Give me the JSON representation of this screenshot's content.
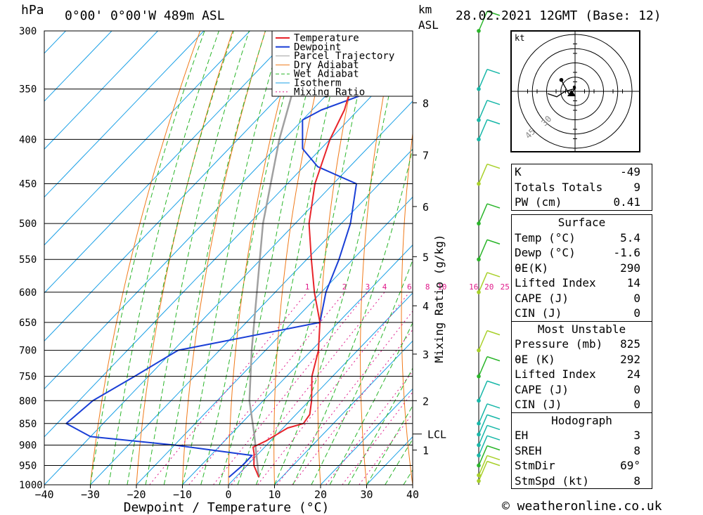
{
  "header": {
    "hpa_unit": "hPa",
    "location": "0°00' 0°00'W 489m ASL",
    "km_unit": "km",
    "asl": "ASL",
    "datetime": "28.02.2021 12GMT (Base: 12)"
  },
  "footer": "© weatheronline.co.uk",
  "colors": {
    "temperature": "#e8242a",
    "dewpoint": "#1a3fd6",
    "parcel": "#a0a0a0",
    "dry_adiabat": "#f07a1a",
    "wet_adiabat": "#2ab52a",
    "isotherm": "#1aa0e6",
    "mixing_ratio": "#e01a8a"
  },
  "hodograph": {
    "unit": "kt",
    "ring_labels": [
      "30",
      "45"
    ],
    "trace": [
      [
        -6,
        0.5
      ],
      [
        -4,
        1.2
      ],
      [
        -2.5,
        0.2
      ],
      [
        -1.5,
        -0.2
      ],
      [
        0,
        -0.6
      ],
      [
        -1.2,
        0.8
      ],
      [
        -2.5,
        -1.5
      ],
      [
        -3,
        -2.5
      ]
    ]
  },
  "indices": {
    "top": [
      {
        "label": "K",
        "value": "-49"
      },
      {
        "label": "Totals Totals",
        "value": "9"
      },
      {
        "label": "PW (cm)",
        "value": "0.41"
      }
    ],
    "surface": {
      "title": "Surface",
      "rows": [
        {
          "label": "Temp (°C)",
          "value": "5.4"
        },
        {
          "label": "Dewp (°C)",
          "value": "-1.6"
        },
        {
          "label": "θE(K)",
          "value": "290"
        },
        {
          "label": "Lifted Index",
          "value": "14"
        },
        {
          "label": "CAPE (J)",
          "value": "0"
        },
        {
          "label": "CIN (J)",
          "value": "0"
        }
      ]
    },
    "most_unstable": {
      "title": "Most Unstable",
      "rows": [
        {
          "label": "Pressure (mb)",
          "value": "825"
        },
        {
          "label": "θE (K)",
          "value": "292"
        },
        {
          "label": "Lifted Index",
          "value": "24"
        },
        {
          "label": "CAPE (J)",
          "value": "0"
        },
        {
          "label": "CIN (J)",
          "value": "0"
        }
      ]
    },
    "hodograph": {
      "title": "Hodograph",
      "rows": [
        {
          "label": "EH",
          "value": "3"
        },
        {
          "label": "SREH",
          "value": "8"
        },
        {
          "label": "StmDir",
          "value": "69°"
        },
        {
          "label": "StmSpd (kt)",
          "value": "8"
        }
      ]
    }
  },
  "chart_data": {
    "type": "line",
    "xlabel": "Dewpoint / Temperature (°C)",
    "ylabel_right": "Mixing Ratio (g/kg)",
    "xlim": [
      -40,
      40
    ],
    "ylim": [
      1000,
      300
    ],
    "y_scale": "log",
    "x_ticks": [
      -40,
      -30,
      -20,
      -10,
      0,
      10,
      20,
      30,
      40
    ],
    "pressure_ticks": [
      300,
      350,
      400,
      450,
      500,
      550,
      600,
      650,
      700,
      750,
      800,
      850,
      900,
      950,
      1000
    ],
    "height_ticks_km": [
      {
        "label": "8",
        "p": 363
      },
      {
        "label": "7",
        "p": 417
      },
      {
        "label": "6",
        "p": 478
      },
      {
        "label": "5",
        "p": 546
      },
      {
        "label": "4",
        "p": 622
      },
      {
        "label": "3",
        "p": 707
      },
      {
        "label": "2",
        "p": 800
      },
      {
        "label": "1",
        "p": 912
      }
    ],
    "lcl": {
      "label": "LCL",
      "p": 874
    },
    "mixing_ratio_labels": [
      "1",
      "2",
      "3",
      "4",
      "6",
      "8",
      "10",
      "16",
      "20",
      "25"
    ],
    "mixing_ratio_label_p": 600,
    "legend": [
      "Temperature",
      "Dewpoint",
      "Parcel Trajectory",
      "Dry Adiabat",
      "Wet Adiabat",
      "Isotherm",
      "Mixing Ratio"
    ],
    "series": [
      {
        "name": "Temperature",
        "points": [
          [
            980,
            5.0
          ],
          [
            950,
            1.5
          ],
          [
            920,
            -1.0
          ],
          [
            905,
            -2.5
          ],
          [
            890,
            -1.0
          ],
          [
            860,
            1.0
          ],
          [
            850,
            3.5
          ],
          [
            830,
            3.0
          ],
          [
            800,
            0.5
          ],
          [
            750,
            -4.5
          ],
          [
            700,
            -8.5
          ],
          [
            650,
            -14.0
          ],
          [
            600,
            -21.5
          ],
          [
            550,
            -29.0
          ],
          [
            500,
            -37.0
          ],
          [
            450,
            -44.0
          ],
          [
            400,
            -50.0
          ],
          [
            370,
            -53.0
          ],
          [
            350,
            -56.0
          ],
          [
            300,
            -63.0
          ]
        ]
      },
      {
        "name": "Dewpoint",
        "points": [
          [
            980,
            -1.5
          ],
          [
            950,
            -1.0
          ],
          [
            925,
            -1.0
          ],
          [
            900,
            -20.0
          ],
          [
            880,
            -40.0
          ],
          [
            850,
            -48.0
          ],
          [
            800,
            -47.0
          ],
          [
            750,
            -43.0
          ],
          [
            700,
            -39.0
          ],
          [
            650,
            -14.0
          ],
          [
            600,
            -19.0
          ],
          [
            550,
            -23.0
          ],
          [
            500,
            -28.0
          ],
          [
            450,
            -35.0
          ],
          [
            430,
            -47.0
          ],
          [
            410,
            -54.0
          ],
          [
            380,
            -60.0
          ],
          [
            370,
            -58.0
          ],
          [
            350,
            -50.0
          ],
          [
            340,
            -66.0
          ],
          [
            300,
            -71.0
          ]
        ]
      },
      {
        "name": "Parcel Trajectory",
        "points": [
          [
            980,
            5.0
          ],
          [
            874,
            -5.0
          ],
          [
            800,
            -13.0
          ],
          [
            700,
            -23.0
          ],
          [
            600,
            -34.0
          ],
          [
            500,
            -47.0
          ],
          [
            400,
            -61.0
          ],
          [
            300,
            -77.0
          ]
        ]
      }
    ],
    "wind_barbs": [
      {
        "p": 990,
        "color": "#a8d02a"
      },
      {
        "p": 975,
        "color": "#a8d02a"
      },
      {
        "p": 950,
        "color": "#2ab52a"
      },
      {
        "p": 925,
        "color": "#18b7a8"
      },
      {
        "p": 900,
        "color": "#18b7a8"
      },
      {
        "p": 875,
        "color": "#18b7a8"
      },
      {
        "p": 850,
        "color": "#18b7a8"
      },
      {
        "p": 800,
        "color": "#18b7a8"
      },
      {
        "p": 750,
        "color": "#2ab52a"
      },
      {
        "p": 700,
        "color": "#a8d02a"
      },
      {
        "p": 600,
        "color": "#a8d02a"
      },
      {
        "p": 550,
        "color": "#2ab52a"
      },
      {
        "p": 500,
        "color": "#2ab52a"
      },
      {
        "p": 450,
        "color": "#a8d02a"
      },
      {
        "p": 400,
        "color": "#18b7a8"
      },
      {
        "p": 380,
        "color": "#18b7a8"
      },
      {
        "p": 350,
        "color": "#18b7a8"
      },
      {
        "p": 300,
        "color": "#2ab52a"
      }
    ]
  }
}
